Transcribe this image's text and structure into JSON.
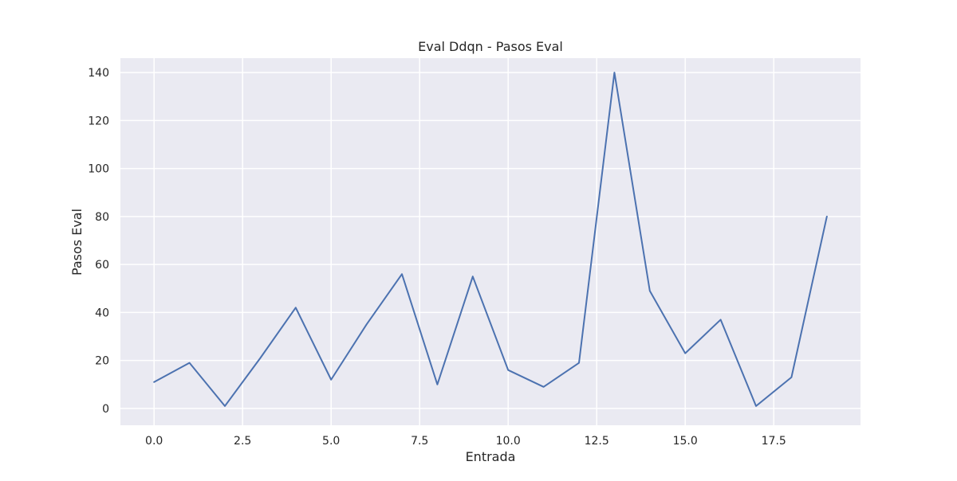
{
  "chart_data": {
    "type": "line",
    "title": "Eval Ddqn - Pasos Eval",
    "xlabel": "Entrada",
    "ylabel": "Pasos Eval",
    "x": [
      0,
      1,
      2,
      3,
      4,
      5,
      6,
      7,
      8,
      9,
      10,
      11,
      12,
      13,
      14,
      15,
      16,
      17,
      18,
      19
    ],
    "series": [
      {
        "values": [
          11,
          19,
          1,
          21,
          42,
          12,
          35,
          56,
          10,
          55,
          16,
          9,
          19,
          140,
          49,
          23,
          37,
          1,
          13,
          80
        ],
        "color": "#4c72b0"
      }
    ],
    "xlim": [
      -0.95,
      19.95
    ],
    "ylim": [
      -7,
      146
    ],
    "xticks": [
      0.0,
      2.5,
      5.0,
      7.5,
      10.0,
      12.5,
      15.0,
      17.5
    ],
    "xtick_labels": [
      "0.0",
      "2.5",
      "5.0",
      "7.5",
      "10.0",
      "12.5",
      "15.0",
      "17.5"
    ],
    "yticks": [
      0,
      20,
      40,
      60,
      80,
      100,
      120,
      140
    ],
    "ytick_labels": [
      "0",
      "20",
      "40",
      "60",
      "80",
      "100",
      "120",
      "140"
    ],
    "grid": true,
    "plot_background": "#eaeaf2",
    "grid_color": "#ffffff"
  }
}
